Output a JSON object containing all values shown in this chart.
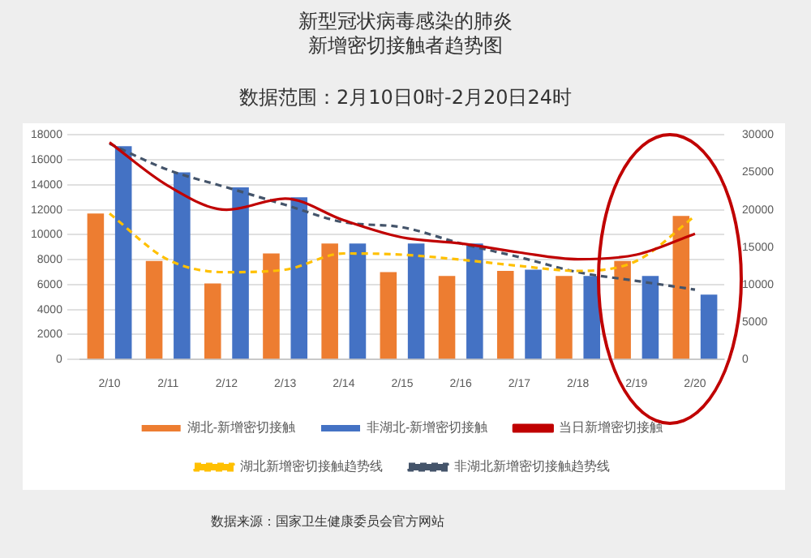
{
  "chart_data": {
    "type": "bar",
    "title": "新型冠状病毒感染的肺炎新增密切接触者趋势图",
    "subtitle": "数据范围：2月10日0时-2月20日24时",
    "categories": [
      "2/10",
      "2/11",
      "2/12",
      "2/13",
      "2/14",
      "2/15",
      "2/16",
      "2/17",
      "2/18",
      "2/19",
      "2/20"
    ],
    "series": [
      {
        "name": "湖北-新增密切接触",
        "color": "#ed7d31",
        "values": [
          11700,
          7900,
          6100,
          8500,
          9300,
          7000,
          6700,
          7100,
          6700,
          7900,
          11500
        ]
      },
      {
        "name": "非湖北-新增密切接触",
        "color": "#4472c4",
        "values": [
          17100,
          15000,
          13800,
          13000,
          9300,
          9300,
          9300,
          7200,
          6700,
          6700,
          5200
        ]
      },
      {
        "name": "当日新增密切接触",
        "type": "line",
        "axis": "y2",
        "color": "#c00000",
        "line_style": "solid",
        "values": [
          29000,
          23200,
          20000,
          21500,
          18600,
          16300,
          15500,
          14300,
          13400,
          14000,
          16800
        ]
      },
      {
        "name": "湖北新增密切接触趋势线",
        "type": "line",
        "color": "#ffc000",
        "line_style": "dashed",
        "values": [
          11700,
          8000,
          7000,
          7200,
          8500,
          8400,
          8000,
          7500,
          7100,
          7900,
          11500
        ]
      },
      {
        "name": "非湖北新增密切接触趋势线",
        "type": "line",
        "color": "#44546a",
        "line_style": "dashed",
        "values": [
          17300,
          15200,
          13800,
          12400,
          11000,
          10600,
          9300,
          8200,
          7000,
          6300,
          5600
        ]
      }
    ],
    "ylim": [
      0,
      18000
    ],
    "yticks": [
      0,
      2000,
      4000,
      6000,
      8000,
      10000,
      12000,
      14000,
      16000,
      18000
    ],
    "y2lim": [
      0,
      30000
    ],
    "y2ticks": [
      0,
      5000,
      10000,
      15000,
      20000,
      25000,
      30000
    ],
    "grid": "y",
    "legend": "bottom",
    "marker": "none",
    "annotations": [
      "数据来源：国家卫生健康委员会官方网站"
    ]
  }
}
